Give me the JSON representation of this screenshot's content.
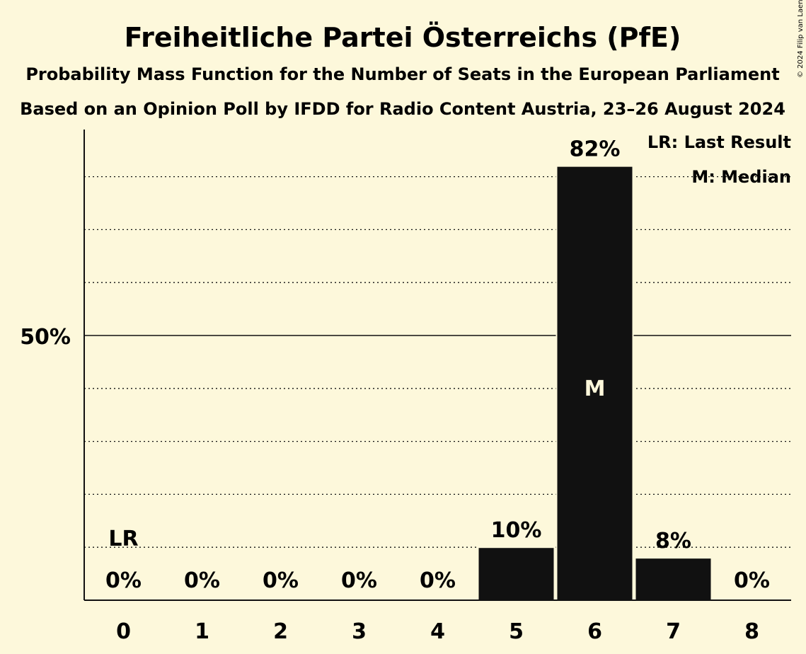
{
  "chart_data": {
    "type": "bar",
    "title": "Freiheitliche Partei Österreichs (PfE)",
    "subtitle_1": "Probability Mass Function for the Number of Seats in the European Parliament",
    "subtitle_2": "Based on an Opinion Poll by IFDD for Radio Content Austria, 23–26 August 2024",
    "categories": [
      "0",
      "1",
      "2",
      "3",
      "4",
      "5",
      "6",
      "7",
      "8"
    ],
    "values": [
      0,
      0,
      0,
      0,
      0,
      10,
      82,
      8,
      0
    ],
    "value_labels": [
      "0%",
      "0%",
      "0%",
      "0%",
      "0%",
      "10%",
      "82%",
      "8%",
      "0%"
    ],
    "ylim": [
      0,
      90
    ],
    "yticks": [
      {
        "value": 50,
        "label": "50%"
      }
    ],
    "gridlines": [
      10,
      20,
      30,
      40,
      60,
      70,
      80
    ],
    "last_result_seat": "0",
    "last_result_marker": "LR",
    "median_seat": "6",
    "median_marker": "M",
    "legend": [
      "LR: Last Result",
      "M: Median"
    ],
    "legend_placement": "top-right",
    "bar_color": "#111111",
    "background_color": "#fdf8db",
    "copyright": "© 2024 Filip van Laenen"
  }
}
